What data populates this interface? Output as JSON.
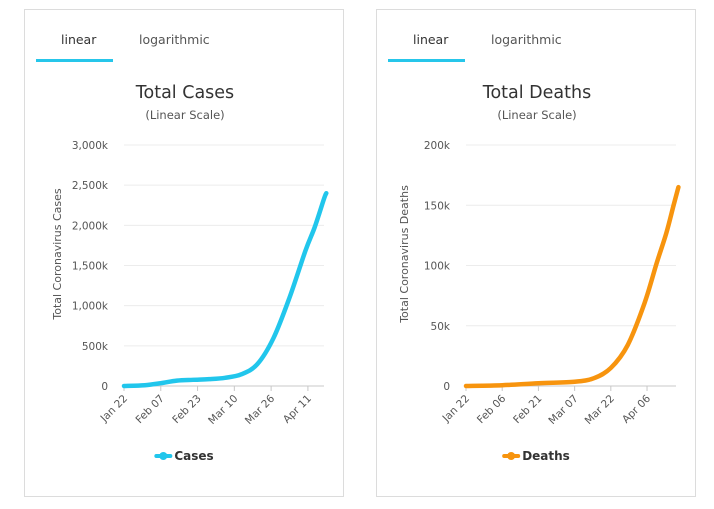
{
  "tabs": [
    "linear",
    "logarithmic"
  ],
  "active_tab": "linear",
  "chart_data": [
    {
      "type": "line",
      "title": "Total Cases",
      "subtitle": "(Linear Scale)",
      "ylabel": "Total Coronavirus Cases",
      "xlabel": "",
      "ylim": [
        0,
        3000000
      ],
      "yticks": [
        0,
        500000,
        1000000,
        1500000,
        2000000,
        2500000,
        3000000
      ],
      "ytick_labels": [
        "0",
        "500k",
        "1,000k",
        "1,500k",
        "2,000k",
        "2,500k",
        "3,000k"
      ],
      "x_start": "Jan 22",
      "x_count": 88,
      "xtick_labels": [
        {
          "label": "Jan 22",
          "index": 0
        },
        {
          "label": "Feb 07",
          "index": 16
        },
        {
          "label": "Feb 23",
          "index": 32
        },
        {
          "label": "Mar 10",
          "index": 48
        },
        {
          "label": "Mar 26",
          "index": 64
        },
        {
          "label": "Apr 11",
          "index": 80
        }
      ],
      "grid": true,
      "legend": "bottom-center",
      "color": "#21c6ec",
      "series": [
        {
          "name": "Cases",
          "points": [
            [
              "Jan 22",
              555
            ],
            [
              "Jan 31",
              9900
            ],
            [
              "Feb 07",
              34900
            ],
            [
              "Feb 14",
              67100
            ],
            [
              "Feb 21",
              77000
            ],
            [
              "Feb 28",
              85000
            ],
            [
              "Mar 06",
              101800
            ],
            [
              "Mar 13",
              145000
            ],
            [
              "Mar 20",
              272000
            ],
            [
              "Mar 27",
              595000
            ],
            [
              "Apr 03",
              1100000
            ],
            [
              "Apr 10",
              1690000
            ],
            [
              "Apr 14",
              1980000
            ],
            [
              "Apr 18",
              2330000
            ],
            [
              "Apr 19",
              2400000
            ]
          ]
        }
      ]
    },
    {
      "type": "line",
      "title": "Total Deaths",
      "subtitle": "(Linear Scale)",
      "ylabel": "Total Coronavirus Deaths",
      "xlabel": "",
      "ylim": [
        0,
        200000
      ],
      "yticks": [
        0,
        50000,
        100000,
        150000,
        200000
      ],
      "ytick_labels": [
        "0",
        "50k",
        "100k",
        "150k",
        "200k"
      ],
      "x_start": "Jan 22",
      "x_count": 88,
      "xtick_labels": [
        {
          "label": "Jan 22",
          "index": 0
        },
        {
          "label": "Feb 06",
          "index": 15
        },
        {
          "label": "Feb 21",
          "index": 30
        },
        {
          "label": "Mar 07",
          "index": 45
        },
        {
          "label": "Mar 22",
          "index": 60
        },
        {
          "label": "Apr 06",
          "index": 75
        }
      ],
      "grid": true,
      "legend": "bottom-center",
      "color": "#f7940e",
      "series": [
        {
          "name": "Deaths",
          "points": [
            [
              "Jan 22",
              17
            ],
            [
              "Feb 06",
              640
            ],
            [
              "Feb 21",
              2250
            ],
            [
              "Mar 07",
              3500
            ],
            [
              "Mar 15",
              6500
            ],
            [
              "Mar 22",
              15000
            ],
            [
              "Mar 29",
              34000
            ],
            [
              "Apr 05",
              69000
            ],
            [
              "Apr 10",
              102000
            ],
            [
              "Apr 14",
              127000
            ],
            [
              "Apr 17",
              150000
            ],
            [
              "Apr 19",
              165000
            ]
          ]
        }
      ]
    }
  ]
}
